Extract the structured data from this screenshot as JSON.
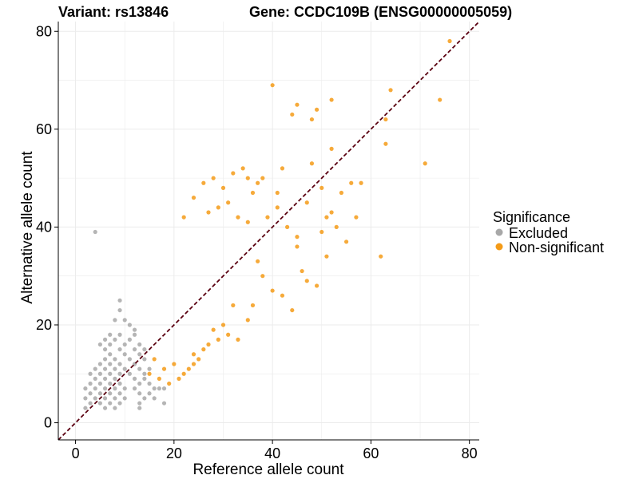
{
  "colors": {
    "excluded": "#a8a8a8",
    "non_significant": "#f49b18",
    "diagonal": "#5a0010",
    "grid": "#ebebeb",
    "axis": "#000000"
  },
  "chart_data": {
    "type": "scatter",
    "title_variant": "Variant: rs13846",
    "title_gene": "Gene: CCDC109B (ENSG00000005059)",
    "xlabel": "Reference allele count",
    "ylabel": "Alternative allele count",
    "xlim": [
      -3.5,
      82
    ],
    "ylim": [
      -3.5,
      82
    ],
    "xticks": [
      0,
      20,
      40,
      60,
      80
    ],
    "yticks": [
      0,
      20,
      40,
      60,
      80
    ],
    "xtick_labels": [
      "0",
      "20",
      "40",
      "60",
      "80"
    ],
    "ytick_labels": [
      "0",
      "20",
      "40",
      "60",
      "80"
    ],
    "reference_line": {
      "type": "diagonal",
      "slope": 1,
      "intercept": 0,
      "style": "dashed"
    },
    "legend": {
      "title": "Significance",
      "position": "right",
      "entries": [
        {
          "name": "Excluded",
          "color": "#a8a8a8"
        },
        {
          "name": "Non-significant",
          "color": "#f49b18"
        }
      ]
    },
    "series": [
      {
        "name": "Excluded",
        "color": "#a8a8a8",
        "points": [
          [
            4,
            39
          ],
          [
            9,
            25
          ],
          [
            9,
            23
          ],
          [
            8,
            21
          ],
          [
            10,
            21
          ],
          [
            11,
            20
          ],
          [
            12,
            19
          ],
          [
            7,
            18
          ],
          [
            9,
            18
          ],
          [
            12,
            18
          ],
          [
            6,
            17
          ],
          [
            8,
            17
          ],
          [
            11,
            17
          ],
          [
            5,
            16
          ],
          [
            7,
            16
          ],
          [
            10,
            16
          ],
          [
            13,
            16
          ],
          [
            6,
            15
          ],
          [
            9,
            15
          ],
          [
            12,
            15
          ],
          [
            14,
            15
          ],
          [
            7,
            14
          ],
          [
            10,
            14
          ],
          [
            13,
            14
          ],
          [
            6,
            13
          ],
          [
            8,
            13
          ],
          [
            11,
            13
          ],
          [
            14,
            13
          ],
          [
            5,
            12
          ],
          [
            7,
            12
          ],
          [
            9,
            12
          ],
          [
            12,
            12
          ],
          [
            4,
            11
          ],
          [
            6,
            11
          ],
          [
            8,
            11
          ],
          [
            10,
            11
          ],
          [
            13,
            11
          ],
          [
            15,
            11
          ],
          [
            3,
            10
          ],
          [
            5,
            10
          ],
          [
            7,
            10
          ],
          [
            9,
            10
          ],
          [
            11,
            10
          ],
          [
            14,
            10
          ],
          [
            4,
            9
          ],
          [
            6,
            9
          ],
          [
            8,
            9
          ],
          [
            12,
            9
          ],
          [
            14,
            9
          ],
          [
            3,
            8
          ],
          [
            5,
            8
          ],
          [
            7,
            8
          ],
          [
            9,
            8
          ],
          [
            13,
            8
          ],
          [
            15,
            8
          ],
          [
            2,
            7
          ],
          [
            4,
            7
          ],
          [
            6,
            7
          ],
          [
            8,
            7
          ],
          [
            10,
            7
          ],
          [
            12,
            7
          ],
          [
            16,
            7
          ],
          [
            17,
            7
          ],
          [
            18,
            7
          ],
          [
            3,
            6
          ],
          [
            5,
            6
          ],
          [
            7,
            6
          ],
          [
            9,
            6
          ],
          [
            13,
            6
          ],
          [
            15,
            6
          ],
          [
            2,
            5
          ],
          [
            4,
            5
          ],
          [
            6,
            5
          ],
          [
            8,
            5
          ],
          [
            10,
            5
          ],
          [
            14,
            5
          ],
          [
            16,
            5
          ],
          [
            3,
            4
          ],
          [
            5,
            4
          ],
          [
            7,
            4
          ],
          [
            9,
            4
          ],
          [
            13,
            4
          ],
          [
            18,
            4
          ],
          [
            2,
            3
          ],
          [
            6,
            3
          ],
          [
            8,
            3
          ],
          [
            13,
            3
          ]
        ]
      },
      {
        "name": "Non-significant",
        "color": "#f49b18",
        "points": [
          [
            76,
            78
          ],
          [
            40,
            69
          ],
          [
            64,
            68
          ],
          [
            45,
            65
          ],
          [
            52,
            66
          ],
          [
            49,
            64
          ],
          [
            44,
            63
          ],
          [
            48,
            62
          ],
          [
            63,
            62
          ],
          [
            63,
            57
          ],
          [
            74,
            66
          ],
          [
            71,
            53
          ],
          [
            52,
            56
          ],
          [
            42,
            52
          ],
          [
            48,
            53
          ],
          [
            62,
            34
          ],
          [
            53,
            40
          ],
          [
            37,
            49
          ],
          [
            41,
            47
          ],
          [
            56,
            49
          ],
          [
            50,
            48
          ],
          [
            47,
            45
          ],
          [
            54,
            47
          ],
          [
            58,
            49
          ],
          [
            51,
            42
          ],
          [
            57,
            42
          ],
          [
            55,
            37
          ],
          [
            52,
            43
          ],
          [
            50,
            39
          ],
          [
            45,
            36
          ],
          [
            46,
            31
          ],
          [
            44,
            23
          ],
          [
            47,
            29
          ],
          [
            49,
            28
          ],
          [
            51,
            34
          ],
          [
            32,
            51
          ],
          [
            34,
            52
          ],
          [
            38,
            50
          ],
          [
            35,
            50
          ],
          [
            28,
            50
          ],
          [
            30,
            48
          ],
          [
            26,
            49
          ],
          [
            36,
            47
          ],
          [
            31,
            45
          ],
          [
            24,
            46
          ],
          [
            22,
            42
          ],
          [
            27,
            43
          ],
          [
            29,
            44
          ],
          [
            33,
            42
          ],
          [
            35,
            41
          ],
          [
            39,
            42
          ],
          [
            41,
            44
          ],
          [
            43,
            40
          ],
          [
            45,
            38
          ],
          [
            38,
            30
          ],
          [
            40,
            27
          ],
          [
            42,
            26
          ],
          [
            37,
            33
          ],
          [
            35,
            21
          ],
          [
            36,
            24
          ],
          [
            32,
            24
          ],
          [
            30,
            20
          ],
          [
            33,
            17
          ],
          [
            31,
            18
          ],
          [
            28,
            19
          ],
          [
            26,
            15
          ],
          [
            24,
            14
          ],
          [
            22,
            10
          ],
          [
            20,
            12
          ],
          [
            18,
            11
          ],
          [
            16,
            13
          ],
          [
            21,
            9
          ],
          [
            24,
            12
          ],
          [
            19,
            8
          ],
          [
            17,
            9
          ],
          [
            15,
            10
          ],
          [
            23,
            11
          ],
          [
            25,
            13
          ],
          [
            27,
            16
          ],
          [
            29,
            17
          ]
        ]
      }
    ]
  }
}
